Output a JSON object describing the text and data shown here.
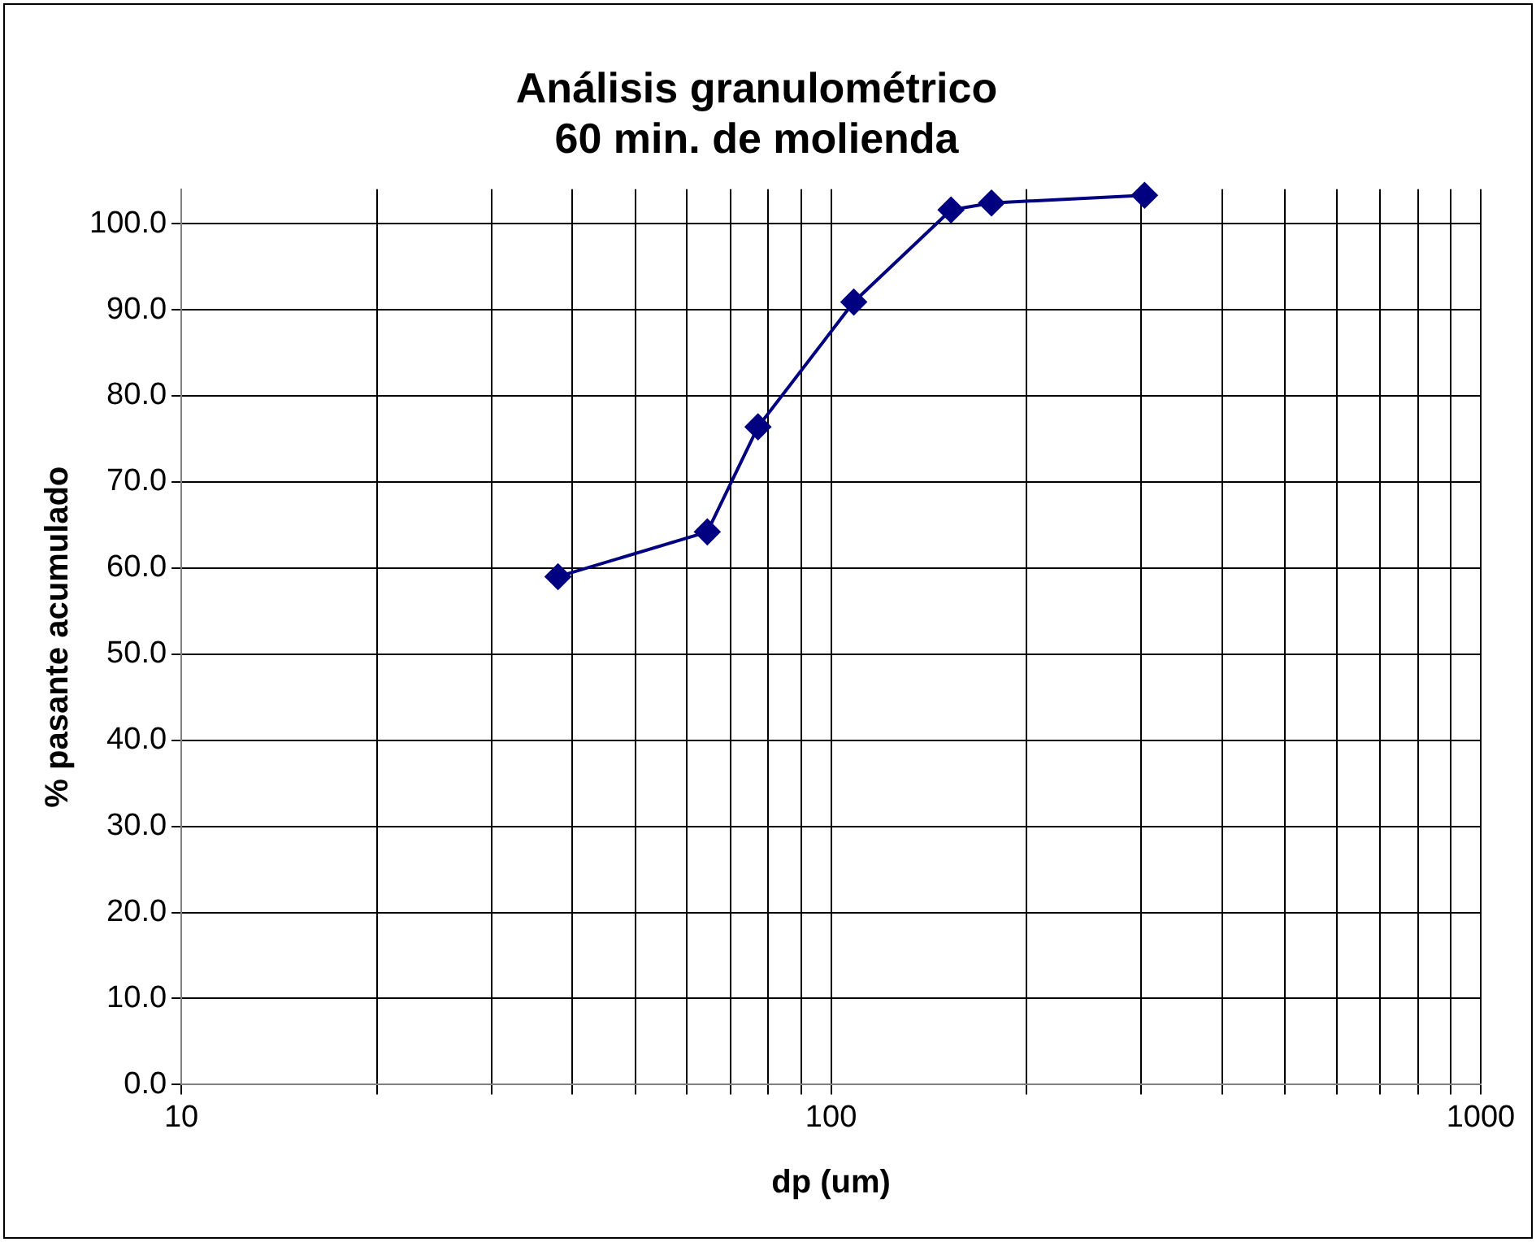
{
  "chart_data": {
    "type": "line",
    "title": "Análisis granulométrico\n60 min. de molienda",
    "xlabel": "dp (um)",
    "ylabel": "% pasante acumulado",
    "x": [
      38.0,
      64.5,
      77.2,
      108.4,
      153,
      176.6,
      303.8
    ],
    "series": [
      {
        "color": "#000080",
        "values": [
          59.0,
          64.2,
          76.4,
          90.9,
          101.6,
          102.4,
          103.3
        ]
      }
    ],
    "log": "x",
    "xlim": [
      10,
      1000
    ],
    "xticks": [
      10,
      {
        "value": 20,
        "label": null
      },
      {
        "value": 30,
        "label": null
      },
      {
        "value": 40,
        "label": null
      },
      {
        "value": 50,
        "label": null
      },
      {
        "value": 60,
        "label": null
      },
      {
        "value": 70,
        "label": null
      },
      {
        "value": 80,
        "label": null
      },
      {
        "value": 90,
        "label": null
      },
      100,
      {
        "value": 200,
        "label": null
      },
      {
        "value": 300,
        "label": null
      },
      {
        "value": 400,
        "label": null
      },
      {
        "value": 500,
        "label": null
      },
      {
        "value": 600,
        "label": null
      },
      {
        "value": 700,
        "label": null
      },
      {
        "value": 800,
        "label": null
      },
      {
        "value": 900,
        "label": null
      },
      1000
    ],
    "ylim": [
      0,
      104
    ],
    "yticks": [
      {
        "value": 0,
        "label": "0.0"
      },
      {
        "value": 10,
        "label": "10.0"
      },
      {
        "value": 20,
        "label": "20.0"
      },
      {
        "value": 30,
        "label": "30.0"
      },
      {
        "value": 40,
        "label": "40.0"
      },
      {
        "value": 50,
        "label": "50.0"
      },
      {
        "value": 60,
        "label": "60.0"
      },
      {
        "value": 70,
        "label": "70.0"
      },
      {
        "value": 80,
        "label": "80.0"
      },
      {
        "value": 90,
        "label": "90.0"
      },
      {
        "value": 100,
        "label": "100.0"
      }
    ],
    "grid": true,
    "legend": false,
    "marker": "diamond",
    "line_style": "solid"
  }
}
